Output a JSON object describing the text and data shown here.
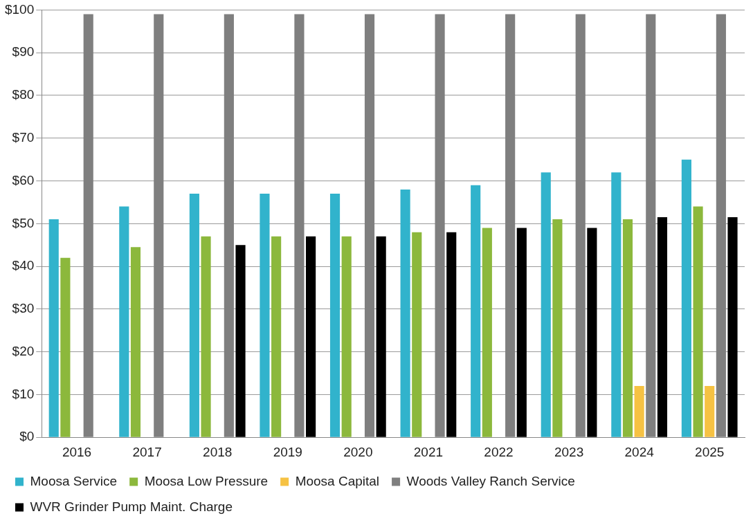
{
  "chart_data": {
    "type": "bar",
    "categories": [
      "2016",
      "2017",
      "2018",
      "2019",
      "2020",
      "2021",
      "2022",
      "2023",
      "2024",
      "2025"
    ],
    "series": [
      {
        "name": "Moosa Service",
        "color": "#31b3cc",
        "values": [
          51,
          54,
          57,
          57,
          57,
          58,
          59,
          62,
          62,
          65
        ]
      },
      {
        "name": "Moosa Low Pressure",
        "color": "#8cb83c",
        "values": [
          42,
          44.5,
          47,
          47,
          47,
          48,
          49,
          51,
          51,
          54
        ]
      },
      {
        "name": "Moosa Capital",
        "color": "#f6c243",
        "values": [
          null,
          null,
          null,
          null,
          null,
          null,
          null,
          null,
          12,
          12
        ]
      },
      {
        "name": "Woods Valley Ranch Service",
        "color": "#7f7f7f",
        "values": [
          99,
          99,
          99,
          99,
          99,
          99,
          99,
          99,
          99,
          99
        ]
      },
      {
        "name": "WVR Grinder Pump Maint. Charge",
        "color": "#000000",
        "values": [
          null,
          null,
          45,
          47,
          47,
          48,
          49,
          49,
          51.5,
          51.5
        ]
      }
    ],
    "ylim": [
      0,
      100
    ],
    "yticks": [
      {
        "value": 0,
        "label": "$0"
      },
      {
        "value": 10,
        "label": "$10"
      },
      {
        "value": 20,
        "label": "$20"
      },
      {
        "value": 30,
        "label": "$30"
      },
      {
        "value": 40,
        "label": "$40"
      },
      {
        "value": 50,
        "label": "$50"
      },
      {
        "value": 60,
        "label": "$60"
      },
      {
        "value": 70,
        "label": "$70"
      },
      {
        "value": 80,
        "label": "$80"
      },
      {
        "value": 90,
        "label": "$90"
      },
      {
        "value": 100,
        "label": "$100"
      }
    ],
    "grid": "y",
    "legend": "bottom"
  }
}
